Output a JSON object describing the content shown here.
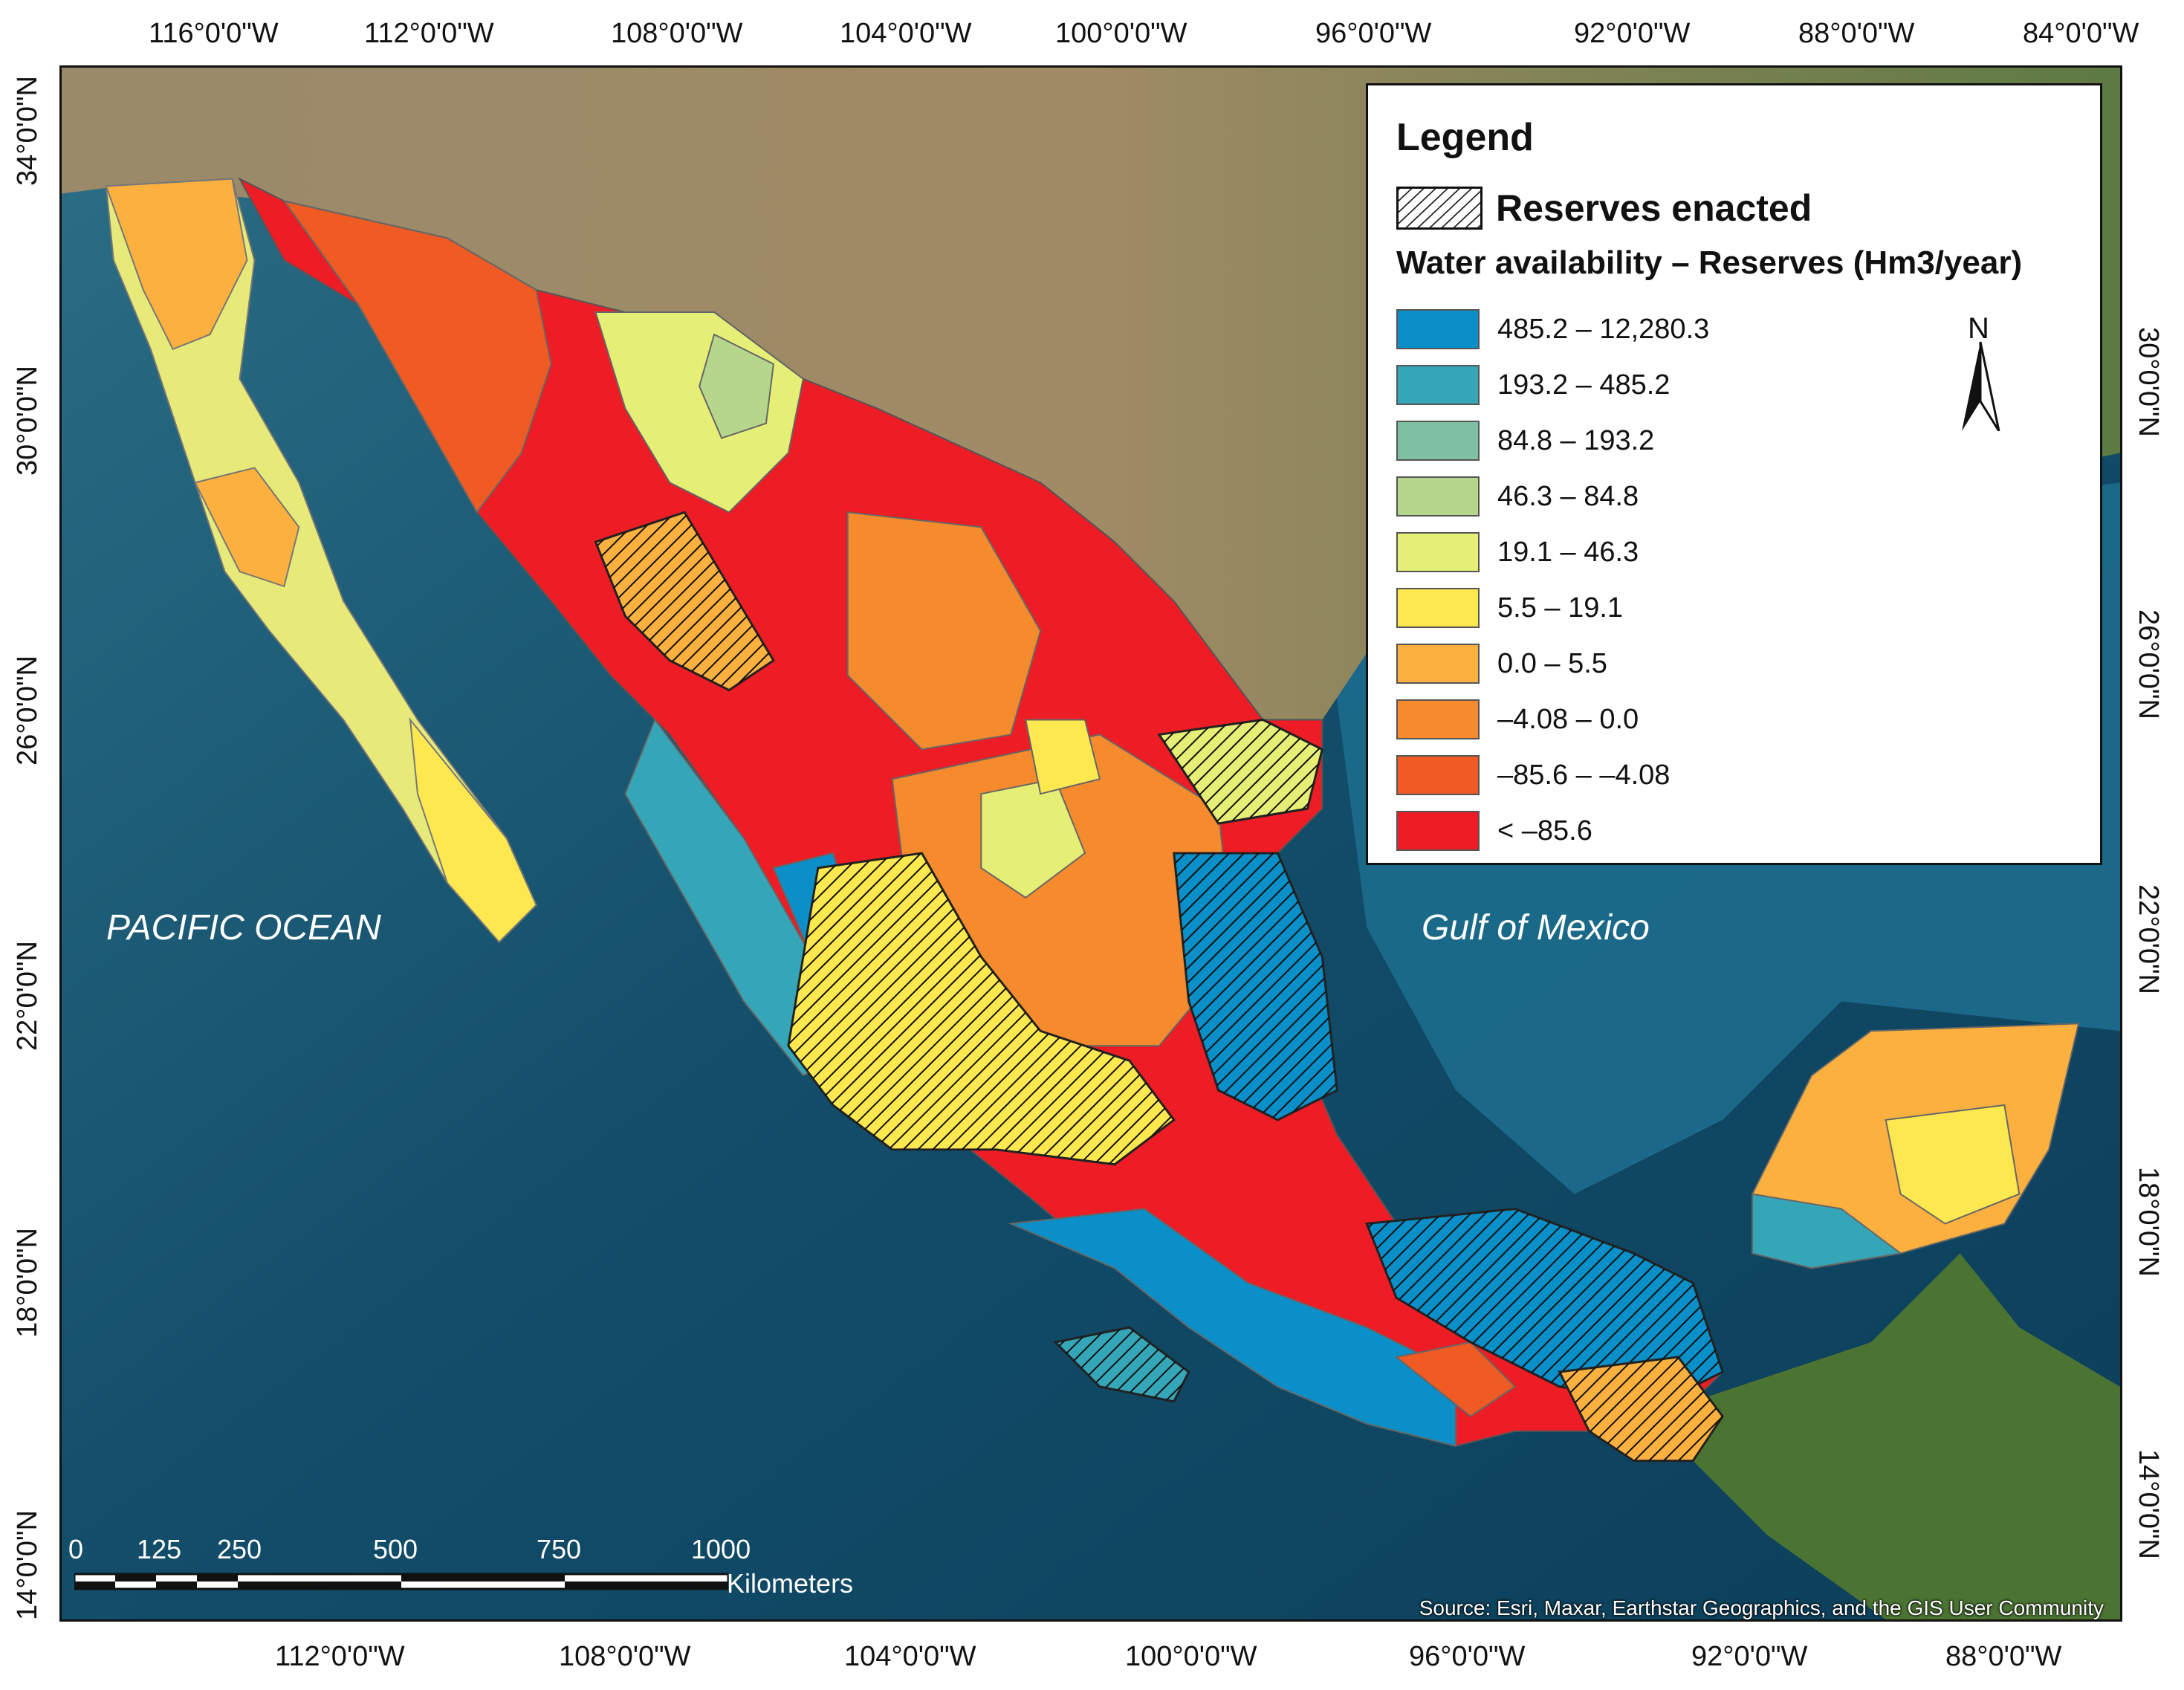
{
  "map": {
    "top_ticks": [
      "116°0'0\"W",
      "112°0'0\"W",
      "108°0'0\"W",
      "104°0'0\"W",
      "100°0'0\"W",
      "96°0'0\"W",
      "92°0'0\"W",
      "88°0'0\"W",
      "84°0'0\"W"
    ],
    "bottom_ticks": [
      "112°0'0\"W",
      "108°0'0\"W",
      "104°0'0\"W",
      "100°0'0\"W",
      "96°0'0\"W",
      "92°0'0\"W",
      "88°0'0\"W"
    ],
    "left_ticks": [
      "34°0'0\"N",
      "30°0'0\"N",
      "26°0'0\"N",
      "22°0'0\"N",
      "18°0'0\"N",
      "14°0'0\"N"
    ],
    "right_ticks": [
      "30°0'0\"N",
      "26°0'0\"N",
      "22°0'0\"N",
      "18°0'0\"N",
      "14°0'0\"N"
    ],
    "ocean_labels": {
      "pacific": "PACIFIC OCEAN",
      "gulf": "Gulf of Mexico"
    },
    "source": "Source: Esri, Maxar, Earthstar Geographics, and the GIS User Community"
  },
  "legend": {
    "title": "Legend",
    "reserves_label": "Reserves enacted",
    "class_title": "Water availability – Reserves (Hm3/year)",
    "classes": [
      {
        "label": "485.2 – 12,280.3",
        "color": "#0a8fc8"
      },
      {
        "label": "193.2 – 485.2",
        "color": "#35a6b8"
      },
      {
        "label": "84.8 – 193.2",
        "color": "#7fbfa3"
      },
      {
        "label": "46.3 – 84.8",
        "color": "#b6d78b"
      },
      {
        "label": "19.1 – 46.3",
        "color": "#e6ef75"
      },
      {
        "label": "5.5 – 19.1",
        "color": "#fde84f"
      },
      {
        "label": "0.0 – 5.5",
        "color": "#fbb03f"
      },
      {
        "label": "–4.08 – 0.0",
        "color": "#f68b2e"
      },
      {
        "label": "–85.6 – –4.08",
        "color": "#f05a23"
      },
      {
        "label": "< –85.6",
        "color": "#ee1c24"
      }
    ]
  },
  "north": {
    "label": "N"
  },
  "scale": {
    "numbers": [
      "0",
      "125",
      "250",
      "500",
      "750",
      "1000"
    ],
    "unit": "Kilometers"
  }
}
